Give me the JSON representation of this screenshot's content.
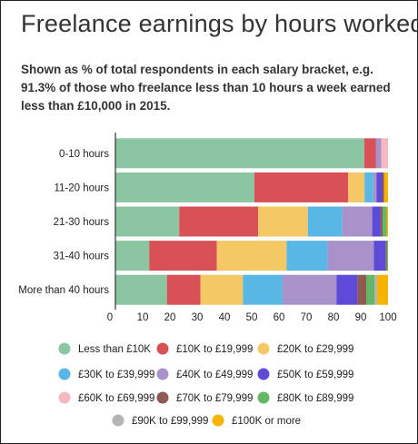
{
  "chart_data": {
    "type": "bar",
    "orientation": "horizontal",
    "stacked": true,
    "title": "Freelance earnings by hours worked",
    "subtitle": "Shown as % of total respondents in each salary bracket, e.g. 91.3% of those who freelance less than 10 hours a week earned less than £10,000 in 2015.",
    "categories": [
      "0-10 hours",
      "11-20 hours",
      "21-30 hours",
      "31-40 hours",
      "More than 40 hours"
    ],
    "xlim": [
      0,
      100
    ],
    "xticks": [
      "0",
      "10",
      "20",
      "30",
      "40",
      "50",
      "60",
      "70",
      "80",
      "90",
      "100"
    ],
    "grid": false,
    "legend_position": "bottom",
    "series": [
      {
        "name": "Less than £10K",
        "color": "#8cc5a1",
        "values": [
          91.3,
          51.0,
          23.4,
          12.4,
          18.9
        ]
      },
      {
        "name": "£10K to £19,999",
        "color": "#d85156",
        "values": [
          4.2,
          34.4,
          29.0,
          24.8,
          12.3
        ]
      },
      {
        "name": "£20K to £29,999",
        "color": "#f4c865",
        "values": [
          0,
          6.0,
          18.2,
          25.6,
          15.6
        ]
      },
      {
        "name": "£30K to £39,999",
        "color": "#59b7e6",
        "values": [
          0,
          3.2,
          12.6,
          15.0,
          14.5
        ]
      },
      {
        "name": "£40K to £49,999",
        "color": "#a991c9",
        "values": [
          2.0,
          1.2,
          11.0,
          17.0,
          19.8
        ]
      },
      {
        "name": "£50K to £59,999",
        "color": "#5b4bd6",
        "values": [
          0,
          2.2,
          3.1,
          4.3,
          7.7
        ]
      },
      {
        "name": "£60K to £69,999",
        "color": "#f5b8bf",
        "values": [
          2.5,
          0,
          0,
          0,
          0
        ]
      },
      {
        "name": "£70K to £79,999",
        "color": "#8f5a52",
        "values": [
          0,
          0.5,
          0.7,
          0.4,
          3.2
        ]
      },
      {
        "name": "£80K to £89,999",
        "color": "#64b766",
        "values": [
          0,
          0,
          1.5,
          0.5,
          3.0
        ]
      },
      {
        "name": "£90K to £99,999",
        "color": "#b5b5b5",
        "values": [
          0,
          0,
          0,
          0,
          1.0
        ]
      },
      {
        "name": "£100K or more",
        "color": "#f5b400",
        "values": [
          0,
          1.5,
          0.5,
          0,
          4.0
        ]
      }
    ]
  }
}
